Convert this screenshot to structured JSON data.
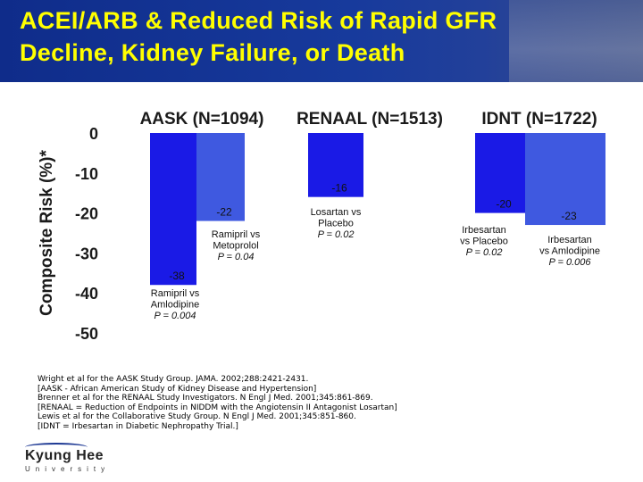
{
  "title": {
    "line1": "ACEI/ARB & Reduced Risk of Rapid GFR",
    "line2": "Decline, Kidney Failure, or Death"
  },
  "colors": {
    "bar_dark": "#1a1ae6",
    "bar_light": "#3f59e0",
    "title": "#ffff00",
    "header_bg": "#173a9c"
  },
  "chart_data": {
    "type": "bar",
    "ylabel": "Composite Risk (%)*",
    "ylim": [
      -50,
      0
    ],
    "yticks": [
      0,
      -10,
      -20,
      -30,
      -40,
      -50
    ],
    "groups": [
      {
        "label": "AASK (N=1094)",
        "bars": [
          {
            "value": -38,
            "label": "-38",
            "shade": "dark",
            "annotation": [
              "Ramipril vs",
              "Amlodipine",
              "P = 0.004"
            ]
          },
          {
            "value": -22,
            "label": "-22",
            "shade": "light",
            "annotation": [
              "Ramipril vs",
              "Metoprolol",
              "P = 0.04"
            ]
          }
        ]
      },
      {
        "label": "RENAAL (N=1513)",
        "bars": [
          {
            "value": -16,
            "label": "-16",
            "shade": "dark",
            "annotation": [
              "Losartan vs",
              "Placebo",
              "P = 0.02"
            ]
          }
        ]
      },
      {
        "label": "IDNT (N=1722)",
        "bars": [
          {
            "value": -20,
            "label": "-20",
            "shade": "dark",
            "annotation": [
              "Irbesartan",
              "vs Placebo",
              "P = 0.02"
            ]
          },
          {
            "value": -23,
            "label": "-23",
            "shade": "light",
            "annotation": [
              "Irbesartan",
              "vs Amlodipine",
              "P = 0.006"
            ]
          }
        ]
      }
    ]
  },
  "references": [
    "Wright et al for the AASK Study Group. JAMA. 2002;288:2421-2431.",
    "[AASK - African American Study of Kidney Disease and Hypertension]",
    "Brenner et al for the RENAAL Study Investigators. N Engl J Med. 2001;345:861-869.",
    "[RENAAL = Reduction of Endpoints in NIDDM with the Angiotensin II Antagonist Losartan]",
    "Lewis et al for the Collaborative Study Group. N Engl J Med. 2001;345:851-860.",
    "[IDNT = Irbesartan in Diabetic Nephropathy Trial.]"
  ],
  "logo": {
    "name": "Kyung Hee",
    "subtitle": "University"
  }
}
